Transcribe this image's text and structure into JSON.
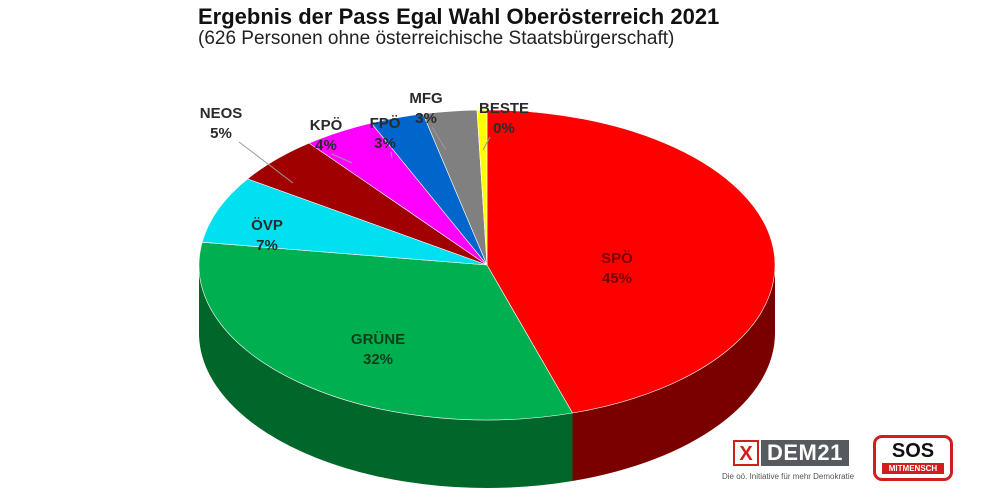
{
  "chart_data": {
    "type": "pie",
    "title": "Ergebnis der Pass Egal Wahl Oberösterreich 2021",
    "subtitle": "(626 Personen ohne österreichische Staatsbürgerschaft)",
    "slices": [
      {
        "label": "SPÖ",
        "value": 45,
        "value_label": "45%",
        "color": "#ff0000",
        "side_color": "#7a0000"
      },
      {
        "label": "GRÜNE",
        "value": 32,
        "value_label": "32%",
        "color": "#00b050",
        "side_color": "#006629"
      },
      {
        "label": "ÖVP",
        "value": 7,
        "value_label": "7%",
        "color": "#00e0f0",
        "side_color": "#007f88"
      },
      {
        "label": "NEOS",
        "value": 5,
        "value_label": "5%",
        "color": "#a00000",
        "side_color": "#500000"
      },
      {
        "label": "KPÖ",
        "value": 4,
        "value_label": "4%",
        "color": "#ff00ff",
        "side_color": "#7a007a"
      },
      {
        "label": "FPÖ",
        "value": 3,
        "value_label": "3%",
        "color": "#0066cc",
        "side_color": "#003366"
      },
      {
        "label": "MFG",
        "value": 3,
        "value_label": "3%",
        "color": "#808080",
        "side_color": "#404040"
      },
      {
        "label": "BESTE",
        "value": 0,
        "value_label": "0%",
        "color": "#ffff00",
        "side_color": "#888800"
      }
    ]
  },
  "logos": {
    "dem21": {
      "mark": "X",
      "name": "DEM21",
      "tagline": "Die oö. Initiative für mehr Demokratie"
    },
    "sos": {
      "name": "SOS",
      "sub": "MITMENSCH"
    }
  }
}
